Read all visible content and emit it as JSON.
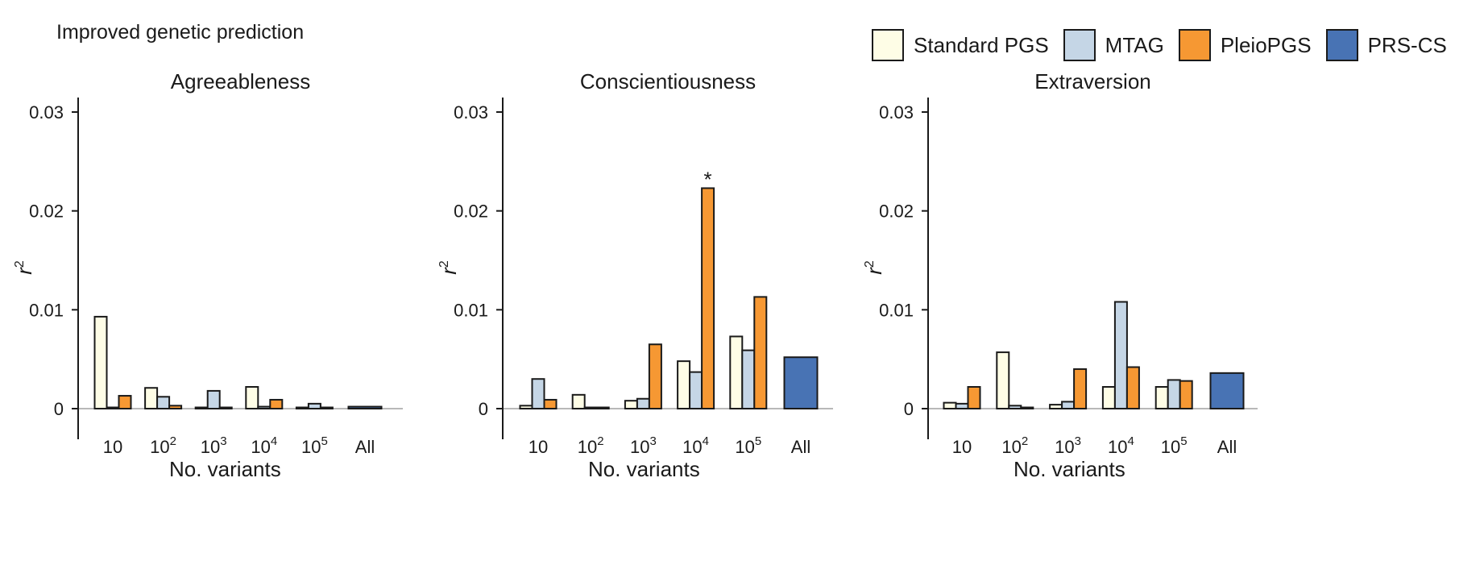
{
  "figure_title": "Improved genetic prediction",
  "colors": {
    "Standard PGS": "#fefde6",
    "MTAG": "#c5d6e6",
    "PleioPGS": "#f69833",
    "PRS-CS": "#4873b4",
    "axis": "#1a1a1a",
    "baseline": "#b8b8b8"
  },
  "legend": [
    "Standard PGS",
    "MTAG",
    "PleioPGS",
    "PRS-CS"
  ],
  "chart_data": [
    {
      "type": "bar",
      "title": "Agreeableness",
      "xlabel": "No. variants",
      "ylabel": "r",
      "ylabel_sup": "2",
      "ylim": [
        0,
        0.03
      ],
      "yticks": [
        {
          "value": 0,
          "label": "0"
        },
        {
          "value": 0.01,
          "label": "0.01"
        },
        {
          "value": 0.02,
          "label": "0.02"
        },
        {
          "value": 0.03,
          "label": "0.03"
        }
      ],
      "categories": [
        {
          "base": "10",
          "sup": ""
        },
        {
          "base": "10",
          "sup": "2"
        },
        {
          "base": "10",
          "sup": "3"
        },
        {
          "base": "10",
          "sup": "4"
        },
        {
          "base": "10",
          "sup": "5"
        },
        {
          "base": "All",
          "sup": ""
        }
      ],
      "series": [
        {
          "name": "Standard PGS",
          "values": [
            0.0093,
            0.0021,
            0.0,
            0.0022,
            0.0,
            null
          ]
        },
        {
          "name": "MTAG",
          "values": [
            0.0,
            0.0012,
            0.0018,
            0.0002,
            0.0005,
            null
          ]
        },
        {
          "name": "PleioPGS",
          "values": [
            0.0013,
            0.0003,
            0.0,
            0.0009,
            0.0,
            null
          ]
        },
        {
          "name": "PRS-CS",
          "values": [
            null,
            null,
            null,
            null,
            null,
            0.0002
          ]
        }
      ],
      "annotations": []
    },
    {
      "type": "bar",
      "title": "Conscientiousness",
      "xlabel": "No. variants",
      "ylabel": "r",
      "ylabel_sup": "2",
      "ylim": [
        0,
        0.03
      ],
      "yticks": [
        {
          "value": 0,
          "label": "0"
        },
        {
          "value": 0.01,
          "label": "0.01"
        },
        {
          "value": 0.02,
          "label": "0.02"
        },
        {
          "value": 0.03,
          "label": "0.03"
        }
      ],
      "categories": [
        {
          "base": "10",
          "sup": ""
        },
        {
          "base": "10",
          "sup": "2"
        },
        {
          "base": "10",
          "sup": "3"
        },
        {
          "base": "10",
          "sup": "4"
        },
        {
          "base": "10",
          "sup": "5"
        },
        {
          "base": "All",
          "sup": ""
        }
      ],
      "series": [
        {
          "name": "Standard PGS",
          "values": [
            0.0003,
            0.0014,
            0.0008,
            0.0048,
            0.0073,
            null
          ]
        },
        {
          "name": "MTAG",
          "values": [
            0.003,
            0.0001,
            0.001,
            0.0037,
            0.0059,
            null
          ]
        },
        {
          "name": "PleioPGS",
          "values": [
            0.0009,
            0.0001,
            0.0065,
            0.0223,
            0.0113,
            null
          ]
        },
        {
          "name": "PRS-CS",
          "values": [
            null,
            null,
            null,
            null,
            null,
            0.0052
          ]
        }
      ],
      "annotations": [
        {
          "text": "*",
          "category_index": 3,
          "series": "PleioPGS"
        }
      ]
    },
    {
      "type": "bar",
      "title": "Extraversion",
      "xlabel": "No. variants",
      "ylabel": "r",
      "ylabel_sup": "2",
      "ylim": [
        0,
        0.03
      ],
      "yticks": [
        {
          "value": 0,
          "label": "0"
        },
        {
          "value": 0.01,
          "label": "0.01"
        },
        {
          "value": 0.02,
          "label": "0.02"
        },
        {
          "value": 0.03,
          "label": "0.03"
        }
      ],
      "categories": [
        {
          "base": "10",
          "sup": ""
        },
        {
          "base": "10",
          "sup": "2"
        },
        {
          "base": "10",
          "sup": "3"
        },
        {
          "base": "10",
          "sup": "4"
        },
        {
          "base": "10",
          "sup": "5"
        },
        {
          "base": "All",
          "sup": ""
        }
      ],
      "series": [
        {
          "name": "Standard PGS",
          "values": [
            0.0006,
            0.0057,
            0.0004,
            0.0022,
            0.0022,
            null
          ]
        },
        {
          "name": "MTAG",
          "values": [
            0.0005,
            0.0003,
            0.0007,
            0.0108,
            0.0029,
            null
          ]
        },
        {
          "name": "PleioPGS",
          "values": [
            0.0022,
            0.0001,
            0.004,
            0.0042,
            0.0028,
            null
          ]
        },
        {
          "name": "PRS-CS",
          "values": [
            null,
            null,
            null,
            null,
            null,
            0.0036
          ]
        }
      ],
      "annotations": []
    }
  ]
}
